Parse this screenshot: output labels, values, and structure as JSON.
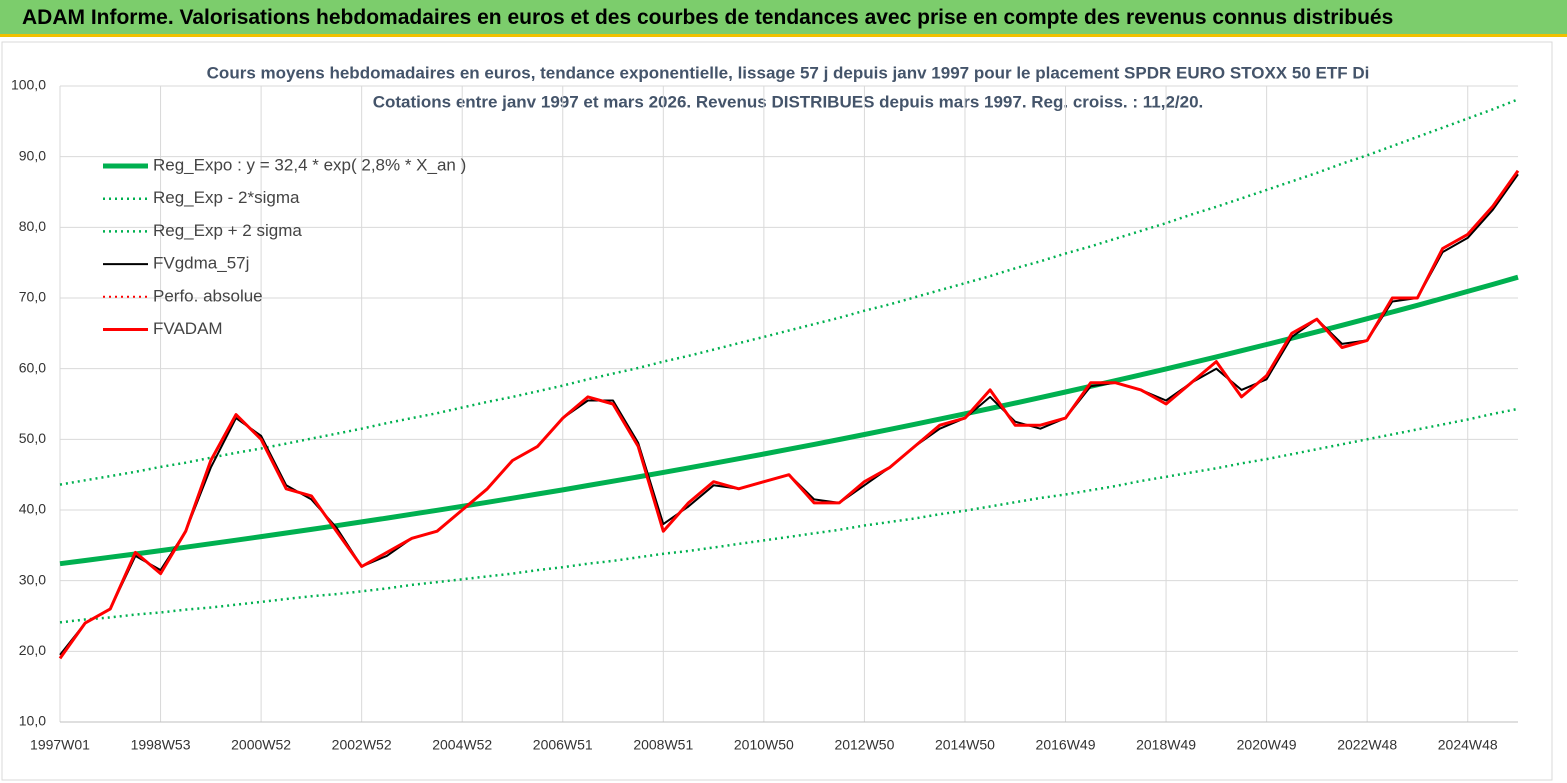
{
  "header": {
    "title": "ADAM Informe. Valorisations hebdomadaires en euros et des courbes de tendances avec prise en compte des revenus connus distribués"
  },
  "chart_data": {
    "type": "line",
    "title": "Cours moyens hebdomadaires en euros, tendance exponentielle, lissage 57 j depuis janv 1997  pour le placement SPDR EURO STOXX 50 ETF Di",
    "subtitle": "Cotations entre janv 1997 et mars 2026. Revenus DISTRIBUES depuis mars 1997. Reg. croiss. : 11,2/20.",
    "categories": [
      "1997W01",
      null,
      null,
      null,
      "1998W53",
      null,
      null,
      null,
      "2000W52",
      null,
      null,
      null,
      "2002W52",
      null,
      null,
      null,
      "2004W52",
      null,
      null,
      null,
      "2006W51",
      null,
      null,
      null,
      "2008W51",
      null,
      null,
      null,
      "2010W50",
      null,
      null,
      null,
      "2012W50",
      null,
      null,
      null,
      "2014W50",
      null,
      null,
      null,
      "2016W49",
      null,
      null,
      null,
      "2018W49",
      null,
      null,
      null,
      "2020W49",
      null,
      null,
      null,
      "2022W48",
      null,
      null,
      null,
      "2024W48",
      null,
      null
    ],
    "ylim": [
      10,
      100
    ],
    "yticks": [
      {
        "value": 10,
        "label": "10,0"
      },
      {
        "value": 20,
        "label": "20,0"
      },
      {
        "value": 30,
        "label": "30,0"
      },
      {
        "value": 40,
        "label": "40,0"
      },
      {
        "value": 50,
        "label": "50,0"
      },
      {
        "value": 60,
        "label": "60,0"
      },
      {
        "value": 70,
        "label": "70,0"
      },
      {
        "value": 80,
        "label": "80,0"
      },
      {
        "value": 90,
        "label": "90,0"
      },
      {
        "value": 100,
        "label": "100,0"
      }
    ],
    "grid": true,
    "series": [
      {
        "name": "Reg_Expo : y = 32,4 * exp( 2,8% *  X_an )",
        "color": "#00b050",
        "style": "solid",
        "width": 5,
        "values": [
          32.4,
          32.86,
          33.32,
          33.78,
          34.26,
          34.74,
          35.23,
          35.73,
          36.23,
          36.74,
          37.26,
          37.78,
          38.31,
          38.85,
          39.4,
          39.96,
          40.52,
          41.09,
          41.67,
          42.26,
          42.85,
          43.46,
          44.07,
          44.69,
          45.32,
          45.96,
          46.61,
          47.26,
          47.93,
          48.6,
          49.29,
          49.98,
          50.69,
          51.4,
          52.13,
          52.86,
          53.61,
          54.36,
          55.13,
          55.91,
          56.7,
          57.5,
          58.31,
          59.13,
          59.96,
          60.81,
          61.67,
          62.54,
          63.42,
          64.31,
          65.22,
          66.14,
          67.07,
          68.02,
          68.97,
          69.95,
          70.93,
          71.93,
          72.94
        ]
      },
      {
        "name": "Reg_Exp - 2*sigma",
        "color": "#00b050",
        "style": "dotted",
        "width": 2.5,
        "values": [
          24.1,
          24.5,
          24.8,
          25.2,
          25.5,
          25.9,
          26.2,
          26.6,
          27.0,
          27.4,
          27.8,
          28.1,
          28.5,
          28.9,
          29.4,
          29.8,
          30.2,
          30.6,
          31.0,
          31.5,
          31.9,
          32.4,
          32.8,
          33.3,
          33.8,
          34.2,
          34.7,
          35.2,
          35.7,
          36.2,
          36.7,
          37.2,
          37.8,
          38.3,
          38.8,
          39.4,
          39.9,
          40.5,
          41.1,
          41.7,
          42.2,
          42.8,
          43.4,
          44.1,
          44.7,
          45.3,
          45.9,
          46.6,
          47.2,
          47.9,
          48.6,
          49.3,
          50.0,
          50.7,
          51.4,
          52.1,
          52.8,
          53.6,
          54.3
        ]
      },
      {
        "name": "Reg_Exp + 2 sigma",
        "color": "#00b050",
        "style": "dotted",
        "width": 2.5,
        "values": [
          43.6,
          44.2,
          44.8,
          45.4,
          46.1,
          46.7,
          47.4,
          48.1,
          48.7,
          49.4,
          50.1,
          50.8,
          51.5,
          52.3,
          53.0,
          53.7,
          54.5,
          55.3,
          56.0,
          56.8,
          57.6,
          58.5,
          59.3,
          60.1,
          61.0,
          61.8,
          62.7,
          63.6,
          64.5,
          65.4,
          66.3,
          67.2,
          68.2,
          69.1,
          70.1,
          71.1,
          72.1,
          73.1,
          74.2,
          75.2,
          76.3,
          77.3,
          78.4,
          79.5,
          80.6,
          81.8,
          82.9,
          84.1,
          85.3,
          86.5,
          87.7,
          89.0,
          90.2,
          91.5,
          92.8,
          94.1,
          95.4,
          96.7,
          98.1
        ]
      },
      {
        "name": "FVgdma_57j",
        "color": "#000000",
        "style": "solid",
        "width": 2,
        "values": [
          19.5,
          24,
          26,
          33.5,
          31.5,
          37,
          46,
          53,
          50.5,
          43.5,
          41.5,
          37.5,
          32,
          33.5,
          36,
          37,
          40,
          43,
          47,
          49,
          53,
          55.5,
          55.5,
          49.5,
          38,
          40.5,
          43.5,
          43,
          44,
          45,
          41.5,
          41,
          43.5,
          46,
          49,
          51.5,
          53,
          56,
          52.5,
          51.5,
          53,
          57.5,
          58,
          57,
          55.5,
          58,
          60,
          57,
          58.5,
          64.5,
          67,
          63.5,
          64,
          69.5,
          70,
          76.5,
          78.5,
          82.5,
          87.5
        ]
      },
      {
        "name": "Perfo. absolue",
        "color": "#ff0000",
        "style": "dotted",
        "width": 2,
        "values": [
          null,
          null,
          null,
          null,
          null,
          null,
          null,
          null,
          null,
          null,
          null,
          null,
          null,
          null,
          null,
          null,
          null,
          null,
          null,
          null,
          null,
          null,
          null,
          null,
          null,
          null,
          null,
          null,
          null,
          null,
          null,
          null,
          null,
          null,
          null,
          null,
          null,
          null,
          null,
          null,
          null,
          null,
          null,
          null,
          null,
          null,
          null,
          null,
          null,
          null,
          null,
          null,
          null,
          null,
          null,
          null,
          null,
          null,
          null
        ]
      },
      {
        "name": "FVADAM",
        "color": "#ff0000",
        "style": "solid",
        "width": 3,
        "values": [
          19,
          24,
          26,
          34,
          31,
          37,
          47,
          53.5,
          50,
          43,
          42,
          37,
          32,
          34,
          36,
          37,
          40,
          43,
          47,
          49,
          53,
          56,
          55,
          49,
          37,
          41,
          44,
          43,
          44,
          45,
          41,
          41,
          44,
          46,
          49,
          52,
          53,
          57,
          52,
          52,
          53,
          58,
          58,
          57,
          55,
          58,
          61,
          56,
          59,
          65,
          67,
          63,
          64,
          70,
          70,
          77,
          79,
          83,
          88
        ]
      }
    ]
  }
}
